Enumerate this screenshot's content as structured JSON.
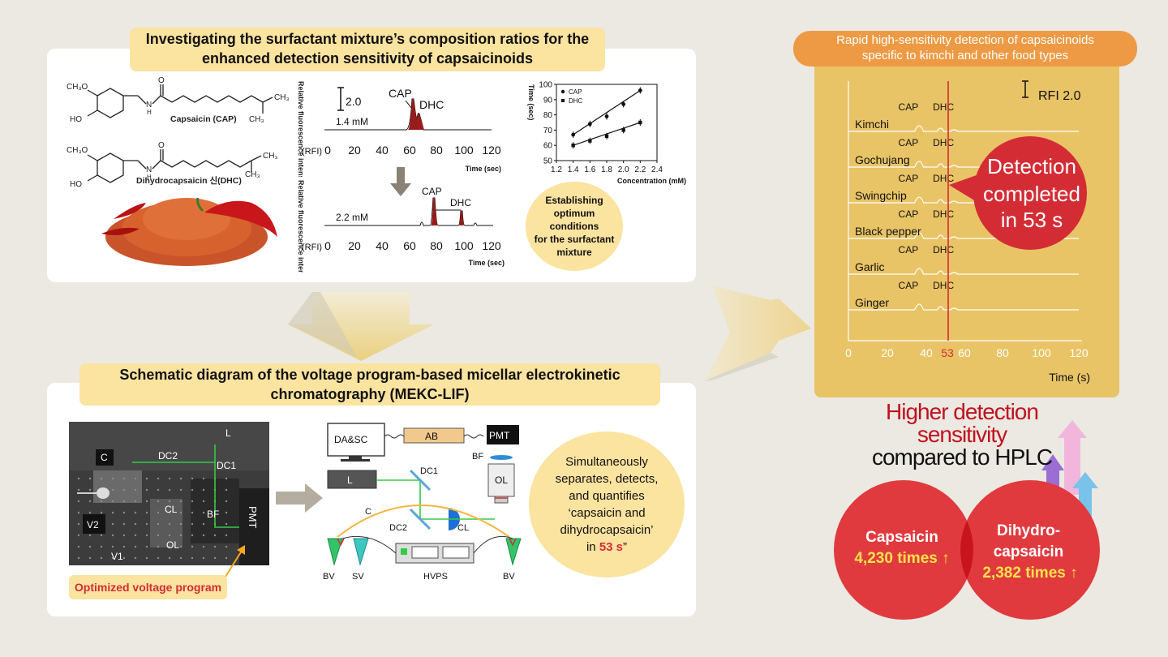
{
  "top_panel": {
    "banner": [
      "Investigating the surfactant mixture’s composition ratios for the",
      "enhanced detection sensitivity of capsaicinoids"
    ],
    "structures": {
      "ch3o_1": "CH₃O",
      "ho_1": "HO",
      "n_1": "N",
      "h_1": "H",
      "o_1": "O",
      "ch3_1a": "CH₃",
      "ch3_1b": "CH₃",
      "cap_name": "Capsaicin (CAP)",
      "ch3o_2": "CH₃O",
      "ho_2": "HO",
      "n_2": "N",
      "h_2": "H",
      "o_2": "O",
      "ch3_2a": "CH₃",
      "ch3_2b": "CH₃",
      "dhc_name": "Dihydrocapsaicin 신(DHC)"
    },
    "chromatogram_top": {
      "ylabel": "Relative fluorescence intensity",
      "scale": "2.0",
      "conc": "1.4 mM",
      "cap": "CAP",
      "dhc": "DHC",
      "rfi": "(RFI)",
      "ticks": [
        "0",
        "20",
        "40",
        "60",
        "80",
        "100",
        "120"
      ],
      "xlabel": "Time (sec)"
    },
    "chromatogram_bottom": {
      "ylabel": "Relative fluorescence intensity",
      "conc": "2.2 mM",
      "cap": "CAP",
      "dhc": "DHC",
      "rfi": "(RFI)",
      "ticks": [
        "0",
        "20",
        "40",
        "60",
        "80",
        "100",
        "120"
      ],
      "xlabel": "Time (sec)"
    },
    "bubble": [
      "Establishing",
      "optimum",
      "conditions",
      "for the surfactant",
      "mixture"
    ]
  },
  "chart_data": {
    "type": "scatter",
    "ylabel": "Time (sec)",
    "xlabel": "Concentration (mM)",
    "xlim": [
      1.2,
      2.4
    ],
    "ylim": [
      50,
      100
    ],
    "x_ticks": [
      "1.2",
      "1.4",
      "1.6",
      "1.8",
      "2.0",
      "2.2",
      "2.4"
    ],
    "y_ticks": [
      "50",
      "60",
      "70",
      "80",
      "90",
      "100"
    ],
    "series": [
      {
        "name": "CAP",
        "x": [
          1.4,
          1.6,
          1.8,
          2.0,
          2.2
        ],
        "y": [
          67,
          74,
          79,
          87,
          96
        ],
        "marker": "circle"
      },
      {
        "name": "DHC",
        "x": [
          1.4,
          1.6,
          1.8,
          2.0,
          2.2
        ],
        "y": [
          60,
          63,
          66,
          70,
          75
        ],
        "marker": "square"
      }
    ]
  },
  "bottom_panel": {
    "banner": [
      "Schematic diagram of the voltage program-based micellar electrokinetic",
      "chromatography (MEKC-LIF)"
    ],
    "photo_labels": {
      "c": "C",
      "dc2": "DC2",
      "l": "L",
      "dc1": "DC1",
      "v2": "V2",
      "cl": "CL",
      "bf": "BF",
      "pmt": "PMT",
      "ol": "OL",
      "v1": "V1"
    },
    "photo_caption": "Optimized voltage program",
    "schematic": {
      "dasc": "DA&SC",
      "ab": "AB",
      "pmt": "PMT",
      "bf": "BF",
      "l": "L",
      "dc1": "DC1",
      "ol": "OL",
      "c": "C",
      "dc2": "DC2",
      "cl": "CL",
      "bv1": "BV",
      "sv": "SV",
      "hvps": "HVPS",
      "bv2": "BV"
    },
    "bubble_lines": [
      "Simultaneously",
      "separates, detects,",
      "and quantifies",
      "‘capsaicin and",
      "dihydrocapsaicin’"
    ],
    "bubble_in": "in ",
    "bubble_time": "53 s",
    "bubble_end": "”"
  },
  "right_panel": {
    "banner": [
      "Rapid high-sensitivity detection of capsaicinoids",
      "specific to kimchi and other food types"
    ],
    "scale_label": "RFI 2.0",
    "traces": [
      {
        "name": "Kimchi",
        "cap": "CAP",
        "dhc": "DHC"
      },
      {
        "name": "Gochujang",
        "cap": "CAP",
        "dhc": "DHC"
      },
      {
        "name": "Swingchip",
        "cap": "CAP",
        "dhc": "DHC"
      },
      {
        "name": "Black pepper",
        "cap": "CAP",
        "dhc": "DHC"
      },
      {
        "name": "Garlic",
        "cap": "CAP",
        "dhc": "DHC"
      },
      {
        "name": "Ginger",
        "cap": "CAP",
        "dhc": "DHC"
      }
    ],
    "ticks": [
      "0",
      "20",
      "40",
      "53",
      "60",
      "80",
      "100",
      "120"
    ],
    "xlabel": "Time (s)",
    "detect_bubble": [
      "Detection",
      "completed",
      "in 53 s"
    ]
  },
  "sensitivity": {
    "line1": "Higher detection",
    "line2": "sensitivity",
    "line3": "compared to HPLC",
    "cap_name": "Capsaicin",
    "cap_value": "4,230 times ↑",
    "dhc_name1": "Dihydro-",
    "dhc_name2": "capsaicin",
    "dhc_value": "2,382 times ↑"
  },
  "colors": {
    "banner": "#fbe3a0",
    "orange_banner": "#ee9a44",
    "gold_panel": "#e9c466",
    "red": "#d42c35",
    "dark_red": "#c1121f",
    "peak_fill": "#9a1b1b",
    "laser_green": "#33cc44"
  }
}
